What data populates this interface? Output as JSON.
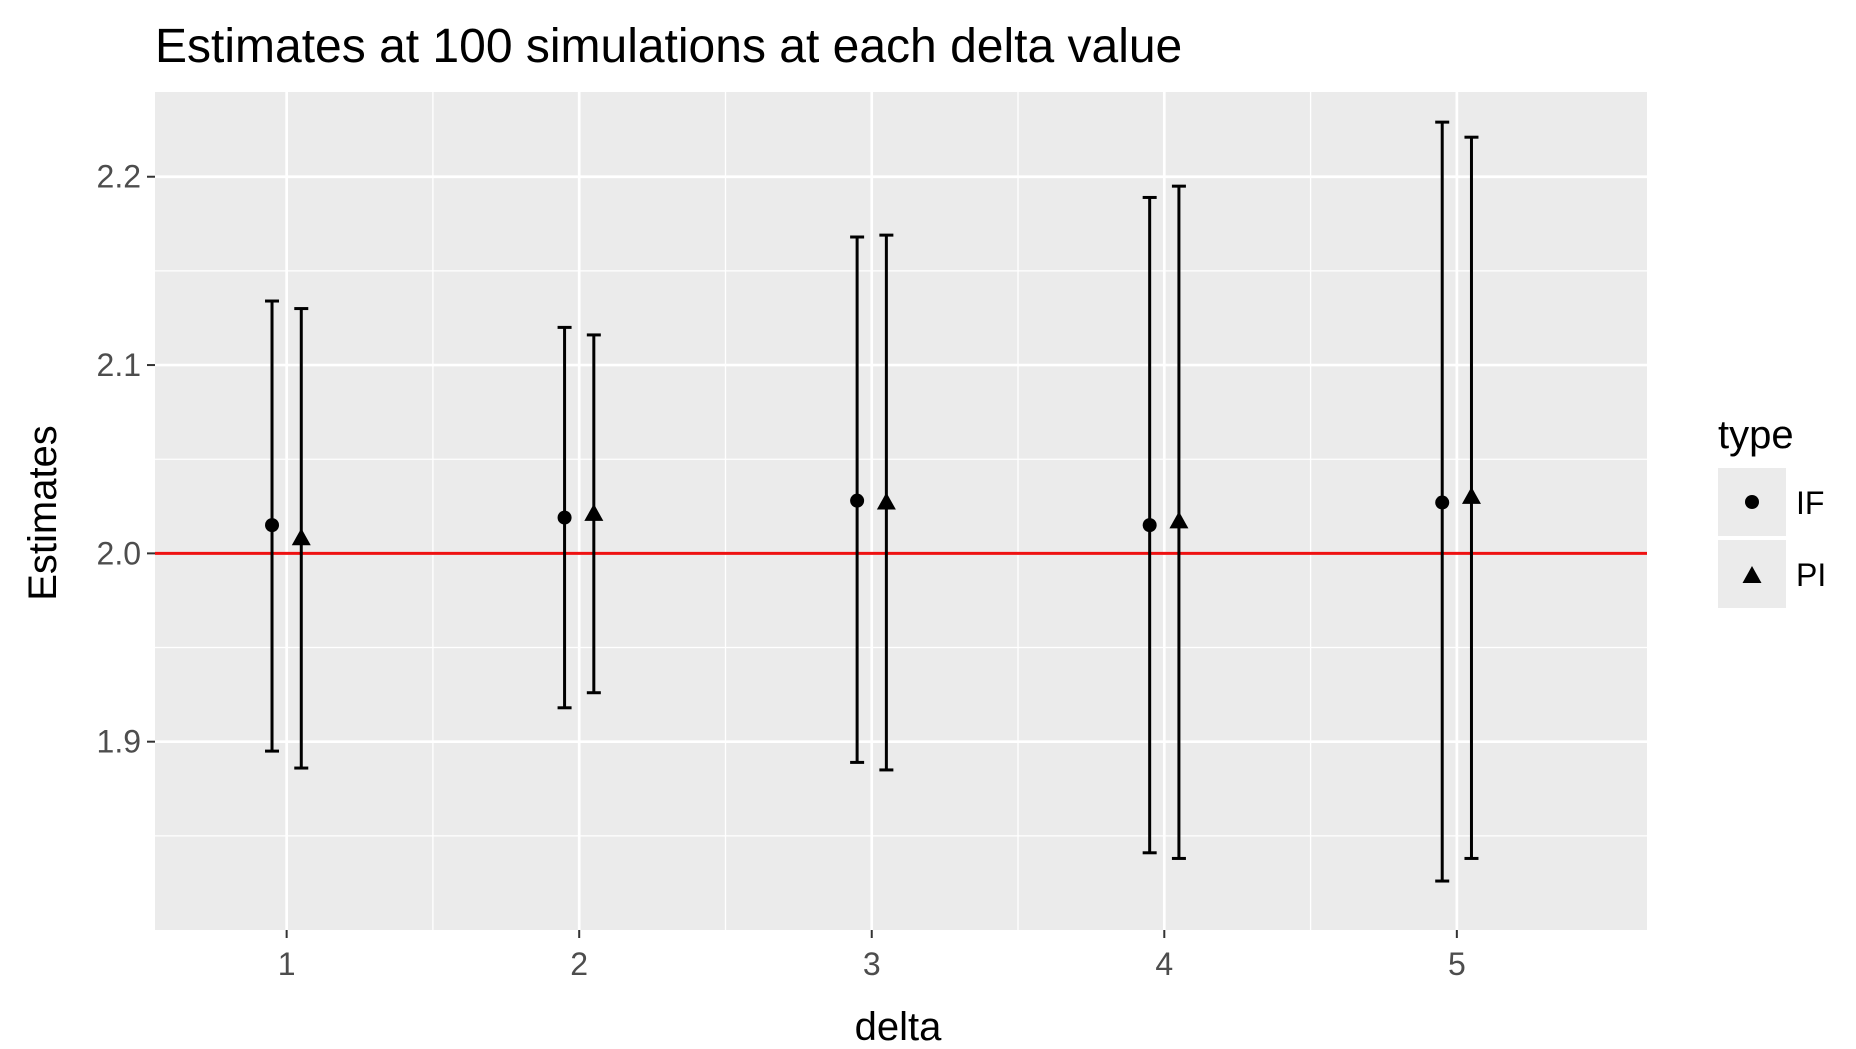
{
  "chart_data": {
    "type": "scatter",
    "title": "Estimates at 100 simulations at each delta value",
    "xlabel": "delta",
    "ylabel": "Estimates",
    "x_ticks": [
      "1",
      "2",
      "3",
      "4",
      "5"
    ],
    "y_ticks": [
      "1.9",
      "2.0",
      "2.1",
      "2.2"
    ],
    "xlim": [
      0.55,
      5.65
    ],
    "ylim": [
      1.8,
      2.245
    ],
    "dodge": 0.05,
    "grid": true,
    "reference_line": {
      "y": 2.0,
      "color": "#ee1111"
    },
    "legend": {
      "title": "type",
      "position": "right"
    },
    "series": [
      {
        "name": "IF",
        "marker": "circle",
        "points": [
          {
            "x": 1,
            "y": 2.015,
            "lower": 1.895,
            "upper": 2.134
          },
          {
            "x": 2,
            "y": 2.019,
            "lower": 1.918,
            "upper": 2.12
          },
          {
            "x": 3,
            "y": 2.028,
            "lower": 1.889,
            "upper": 2.168
          },
          {
            "x": 4,
            "y": 2.015,
            "lower": 1.841,
            "upper": 2.189
          },
          {
            "x": 5,
            "y": 2.027,
            "lower": 1.826,
            "upper": 2.229
          }
        ]
      },
      {
        "name": "PI",
        "marker": "triangle",
        "points": [
          {
            "x": 1,
            "y": 2.008,
            "lower": 1.886,
            "upper": 2.13
          },
          {
            "x": 2,
            "y": 2.021,
            "lower": 1.926,
            "upper": 2.116
          },
          {
            "x": 3,
            "y": 2.027,
            "lower": 1.885,
            "upper": 2.169
          },
          {
            "x": 4,
            "y": 2.017,
            "lower": 1.838,
            "upper": 2.195
          },
          {
            "x": 5,
            "y": 2.03,
            "lower": 1.838,
            "upper": 2.221
          }
        ]
      }
    ]
  }
}
